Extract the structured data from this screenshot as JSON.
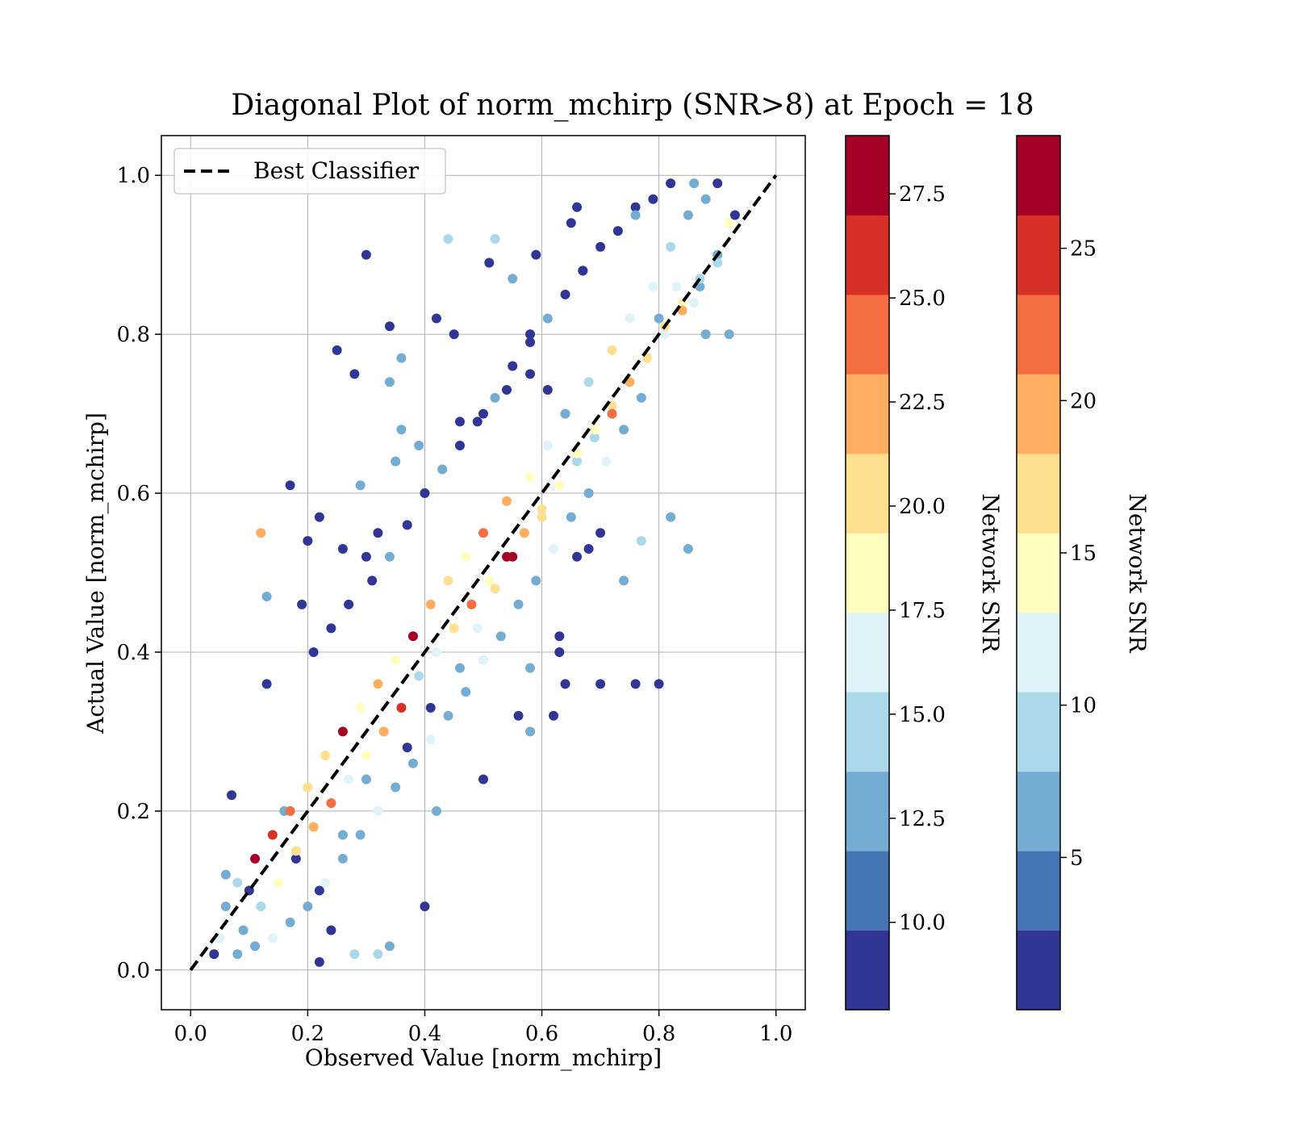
{
  "chart_data": {
    "type": "scatter",
    "title": "Diagonal Plot of norm_mchirp (SNR>8) at Epoch = 18",
    "xlabel": "Observed Value [norm_mchirp]",
    "ylabel": "Actual Value [norm_mchirp]",
    "xlim": [
      -0.05,
      1.05
    ],
    "ylim": [
      -0.05,
      1.05
    ],
    "xticks": [
      "0.0",
      "0.2",
      "0.4",
      "0.6",
      "0.8",
      "1.0"
    ],
    "yticks": [
      "0.0",
      "0.2",
      "0.4",
      "0.6",
      "0.8",
      "1.0"
    ],
    "grid": true,
    "legend": {
      "location": "upper-left",
      "entries": [
        {
          "label": "Best Classifier",
          "style": "dashed",
          "color": "#000000"
        }
      ]
    },
    "reference_line": {
      "x": [
        0,
        1
      ],
      "y": [
        0,
        1
      ]
    },
    "series_note": "scatter points colored by Network SNR; dense band along diagonal, higher SNR closer to diagonal",
    "points": [
      [
        0.3,
        0.9
      ],
      [
        0.25,
        0.78
      ],
      [
        0.28,
        0.75
      ],
      [
        0.34,
        0.81
      ],
      [
        0.42,
        0.82
      ],
      [
        0.45,
        0.8
      ],
      [
        0.44,
        0.92
      ],
      [
        0.52,
        0.92
      ],
      [
        0.51,
        0.89
      ],
      [
        0.55,
        0.87
      ],
      [
        0.59,
        0.9
      ],
      [
        0.58,
        0.8
      ],
      [
        0.65,
        0.94
      ],
      [
        0.67,
        0.88
      ],
      [
        0.66,
        0.96
      ],
      [
        0.76,
        0.96
      ],
      [
        0.29,
        0.61
      ],
      [
        0.2,
        0.54
      ],
      [
        0.22,
        0.57
      ],
      [
        0.26,
        0.53
      ],
      [
        0.17,
        0.61
      ],
      [
        0.13,
        0.47
      ],
      [
        0.12,
        0.55
      ],
      [
        0.19,
        0.46
      ],
      [
        0.36,
        0.77
      ],
      [
        0.34,
        0.74
      ],
      [
        0.36,
        0.68
      ],
      [
        0.39,
        0.66
      ],
      [
        0.35,
        0.64
      ],
      [
        0.32,
        0.55
      ],
      [
        0.3,
        0.52
      ],
      [
        0.46,
        0.69
      ],
      [
        0.5,
        0.7
      ],
      [
        0.54,
        0.73
      ],
      [
        0.58,
        0.75
      ],
      [
        0.61,
        0.73
      ],
      [
        0.13,
        0.36
      ],
      [
        0.63,
        0.4
      ],
      [
        0.64,
        0.36
      ],
      [
        0.7,
        0.36
      ],
      [
        0.76,
        0.36
      ],
      [
        0.8,
        0.36
      ],
      [
        0.62,
        0.32
      ],
      [
        0.56,
        0.32
      ],
      [
        0.58,
        0.3
      ],
      [
        0.5,
        0.24
      ],
      [
        0.42,
        0.2
      ],
      [
        0.4,
        0.08
      ],
      [
        0.34,
        0.03
      ],
      [
        0.32,
        0.02
      ],
      [
        0.28,
        0.02
      ],
      [
        0.22,
        0.01
      ],
      [
        0.82,
        0.57
      ],
      [
        0.85,
        0.53
      ],
      [
        0.77,
        0.54
      ],
      [
        0.74,
        0.49
      ],
      [
        0.7,
        0.55
      ],
      [
        0.68,
        0.53
      ],
      [
        0.66,
        0.52
      ],
      [
        0.63,
        0.42
      ],
      [
        0.58,
        0.38
      ],
      [
        0.07,
        0.22
      ],
      [
        0.06,
        0.12
      ],
      [
        0.1,
        0.1
      ],
      [
        0.16,
        0.2
      ],
      [
        0.18,
        0.14
      ],
      [
        0.22,
        0.1
      ],
      [
        0.24,
        0.05
      ],
      [
        0.26,
        0.17
      ],
      [
        0.3,
        0.24
      ],
      [
        0.37,
        0.28
      ],
      [
        0.41,
        0.33
      ],
      [
        0.46,
        0.38
      ],
      [
        0.49,
        0.43
      ],
      [
        0.52,
        0.48
      ],
      [
        0.55,
        0.52
      ],
      [
        0.57,
        0.55
      ],
      [
        0.6,
        0.57
      ],
      [
        0.63,
        0.61
      ],
      [
        0.66,
        0.65
      ],
      [
        0.69,
        0.67
      ],
      [
        0.72,
        0.7
      ],
      [
        0.75,
        0.74
      ],
      [
        0.78,
        0.77
      ],
      [
        0.81,
        0.8
      ],
      [
        0.84,
        0.83
      ],
      [
        0.87,
        0.86
      ],
      [
        0.9,
        0.89
      ],
      [
        0.92,
        0.94
      ],
      [
        0.88,
        0.97
      ],
      [
        0.85,
        0.95
      ],
      [
        0.82,
        0.91
      ],
      [
        0.79,
        0.86
      ],
      [
        0.75,
        0.82
      ],
      [
        0.72,
        0.78
      ],
      [
        0.68,
        0.74
      ],
      [
        0.64,
        0.7
      ],
      [
        0.61,
        0.66
      ],
      [
        0.58,
        0.62
      ],
      [
        0.54,
        0.59
      ],
      [
        0.5,
        0.55
      ],
      [
        0.47,
        0.52
      ],
      [
        0.44,
        0.49
      ],
      [
        0.41,
        0.46
      ],
      [
        0.38,
        0.42
      ],
      [
        0.35,
        0.39
      ],
      [
        0.32,
        0.36
      ],
      [
        0.29,
        0.33
      ],
      [
        0.26,
        0.3
      ],
      [
        0.23,
        0.27
      ],
      [
        0.2,
        0.23
      ],
      [
        0.17,
        0.2
      ],
      [
        0.14,
        0.17
      ],
      [
        0.11,
        0.14
      ],
      [
        0.08,
        0.11
      ],
      [
        0.06,
        0.08
      ],
      [
        0.05,
        0.04
      ],
      [
        0.04,
        0.02
      ],
      [
        0.09,
        0.05
      ],
      [
        0.12,
        0.08
      ],
      [
        0.15,
        0.11
      ],
      [
        0.18,
        0.15
      ],
      [
        0.21,
        0.18
      ],
      [
        0.24,
        0.21
      ],
      [
        0.27,
        0.24
      ],
      [
        0.3,
        0.27
      ],
      [
        0.33,
        0.3
      ],
      [
        0.36,
        0.33
      ],
      [
        0.39,
        0.37
      ],
      [
        0.42,
        0.4
      ],
      [
        0.45,
        0.43
      ],
      [
        0.48,
        0.46
      ],
      [
        0.51,
        0.49
      ],
      [
        0.54,
        0.52
      ],
      [
        0.57,
        0.55
      ],
      [
        0.6,
        0.58
      ],
      [
        0.63,
        0.61
      ],
      [
        0.66,
        0.64
      ],
      [
        0.69,
        0.68
      ],
      [
        0.72,
        0.71
      ],
      [
        0.75,
        0.74
      ],
      [
        0.78,
        0.77
      ],
      [
        0.81,
        0.81
      ],
      [
        0.84,
        0.84
      ],
      [
        0.87,
        0.87
      ],
      [
        0.9,
        0.9
      ],
      [
        0.93,
        0.95
      ],
      [
        0.92,
        0.8
      ],
      [
        0.88,
        0.8
      ],
      [
        0.86,
        0.84
      ],
      [
        0.83,
        0.86
      ],
      [
        0.8,
        0.82
      ],
      [
        0.77,
        0.72
      ],
      [
        0.74,
        0.68
      ],
      [
        0.71,
        0.64
      ],
      [
        0.68,
        0.6
      ],
      [
        0.65,
        0.57
      ],
      [
        0.62,
        0.53
      ],
      [
        0.59,
        0.49
      ],
      [
        0.56,
        0.46
      ],
      [
        0.53,
        0.42
      ],
      [
        0.5,
        0.39
      ],
      [
        0.47,
        0.35
      ],
      [
        0.44,
        0.32
      ],
      [
        0.41,
        0.29
      ],
      [
        0.38,
        0.26
      ],
      [
        0.35,
        0.23
      ],
      [
        0.32,
        0.2
      ],
      [
        0.29,
        0.17
      ],
      [
        0.26,
        0.14
      ],
      [
        0.23,
        0.11
      ],
      [
        0.2,
        0.08
      ],
      [
        0.17,
        0.06
      ],
      [
        0.14,
        0.04
      ],
      [
        0.11,
        0.03
      ],
      [
        0.08,
        0.02
      ],
      [
        0.27,
        0.46
      ],
      [
        0.24,
        0.43
      ],
      [
        0.21,
        0.4
      ],
      [
        0.31,
        0.49
      ],
      [
        0.34,
        0.52
      ],
      [
        0.37,
        0.56
      ],
      [
        0.4,
        0.6
      ],
      [
        0.43,
        0.63
      ],
      [
        0.46,
        0.66
      ],
      [
        0.49,
        0.69
      ],
      [
        0.52,
        0.72
      ],
      [
        0.55,
        0.76
      ],
      [
        0.58,
        0.79
      ],
      [
        0.61,
        0.82
      ],
      [
        0.64,
        0.85
      ],
      [
        0.67,
        0.88
      ],
      [
        0.7,
        0.91
      ],
      [
        0.73,
        0.93
      ],
      [
        0.76,
        0.95
      ],
      [
        0.79,
        0.97
      ],
      [
        0.82,
        0.99
      ],
      [
        0.86,
        0.99
      ],
      [
        0.9,
        0.99
      ]
    ],
    "point_snr": [
      9,
      9,
      9,
      9,
      9,
      9,
      15,
      15,
      9,
      13,
      9,
      9,
      9,
      9,
      9,
      9,
      13,
      9,
      9,
      9,
      9,
      13,
      22,
      9,
      13,
      13,
      13,
      13,
      13,
      9,
      9,
      9,
      9,
      9,
      9,
      9,
      9,
      9,
      9,
      9,
      9,
      9,
      9,
      9,
      13,
      9,
      13,
      9,
      13,
      15,
      15,
      9,
      13,
      13,
      15,
      13,
      9,
      9,
      9,
      9,
      13,
      9,
      13,
      9,
      13,
      9,
      9,
      9,
      13,
      13,
      9,
      9,
      13,
      16,
      20,
      27,
      22,
      21,
      18,
      18,
      15,
      25,
      18,
      20,
      16,
      22,
      13,
      15,
      18,
      12,
      13,
      15,
      16,
      17,
      21,
      15,
      13,
      16,
      19,
      22,
      25,
      18,
      20,
      23,
      27,
      18,
      22,
      19,
      27,
      20,
      21,
      24,
      26,
      27,
      14,
      13,
      16,
      9,
      13,
      15,
      18,
      20,
      22,
      24,
      16,
      19,
      22,
      26,
      14,
      17,
      21,
      25,
      18,
      27,
      22,
      20,
      17,
      15,
      19,
      21,
      23,
      16,
      20,
      18,
      14,
      12,
      9,
      13,
      13,
      16,
      16,
      13,
      13,
      13,
      16,
      13,
      13,
      16,
      13,
      13,
      13,
      16,
      13,
      13,
      16,
      13,
      13,
      16,
      13,
      13,
      16,
      13,
      13,
      16,
      13,
      13,
      9,
      9,
      9,
      9,
      13,
      9,
      9,
      13,
      9,
      9,
      13,
      9,
      9,
      13,
      9,
      9,
      9,
      9,
      13,
      9,
      9,
      13,
      9
    ]
  },
  "colorbars": [
    {
      "label": "Network SNR",
      "ticks": [
        "27.5",
        "25.0",
        "22.5",
        "20.0",
        "17.5",
        "15.0",
        "12.5",
        "10.0"
      ],
      "tick_values": [
        27.5,
        25.0,
        22.5,
        20.0,
        17.5,
        15.0,
        12.5,
        10.0
      ],
      "range": [
        7.9,
        28.9
      ],
      "colors": [
        "#313695",
        "#4575b4",
        "#74add1",
        "#abd9e9",
        "#e0f3f8",
        "#ffffbf",
        "#fee090",
        "#fdae61",
        "#f46d43",
        "#d73027",
        "#a50026"
      ]
    },
    {
      "label": "Network SNR",
      "ticks": [
        "25",
        "20",
        "15",
        "10",
        "5"
      ],
      "tick_values": [
        25,
        20,
        15,
        10,
        5
      ],
      "range": [
        0,
        28.7
      ],
      "colors": [
        "#313695",
        "#4575b4",
        "#74add1",
        "#abd9e9",
        "#e0f3f8",
        "#ffffbf",
        "#fee090",
        "#fdae61",
        "#f46d43",
        "#d73027",
        "#a50026"
      ]
    }
  ]
}
